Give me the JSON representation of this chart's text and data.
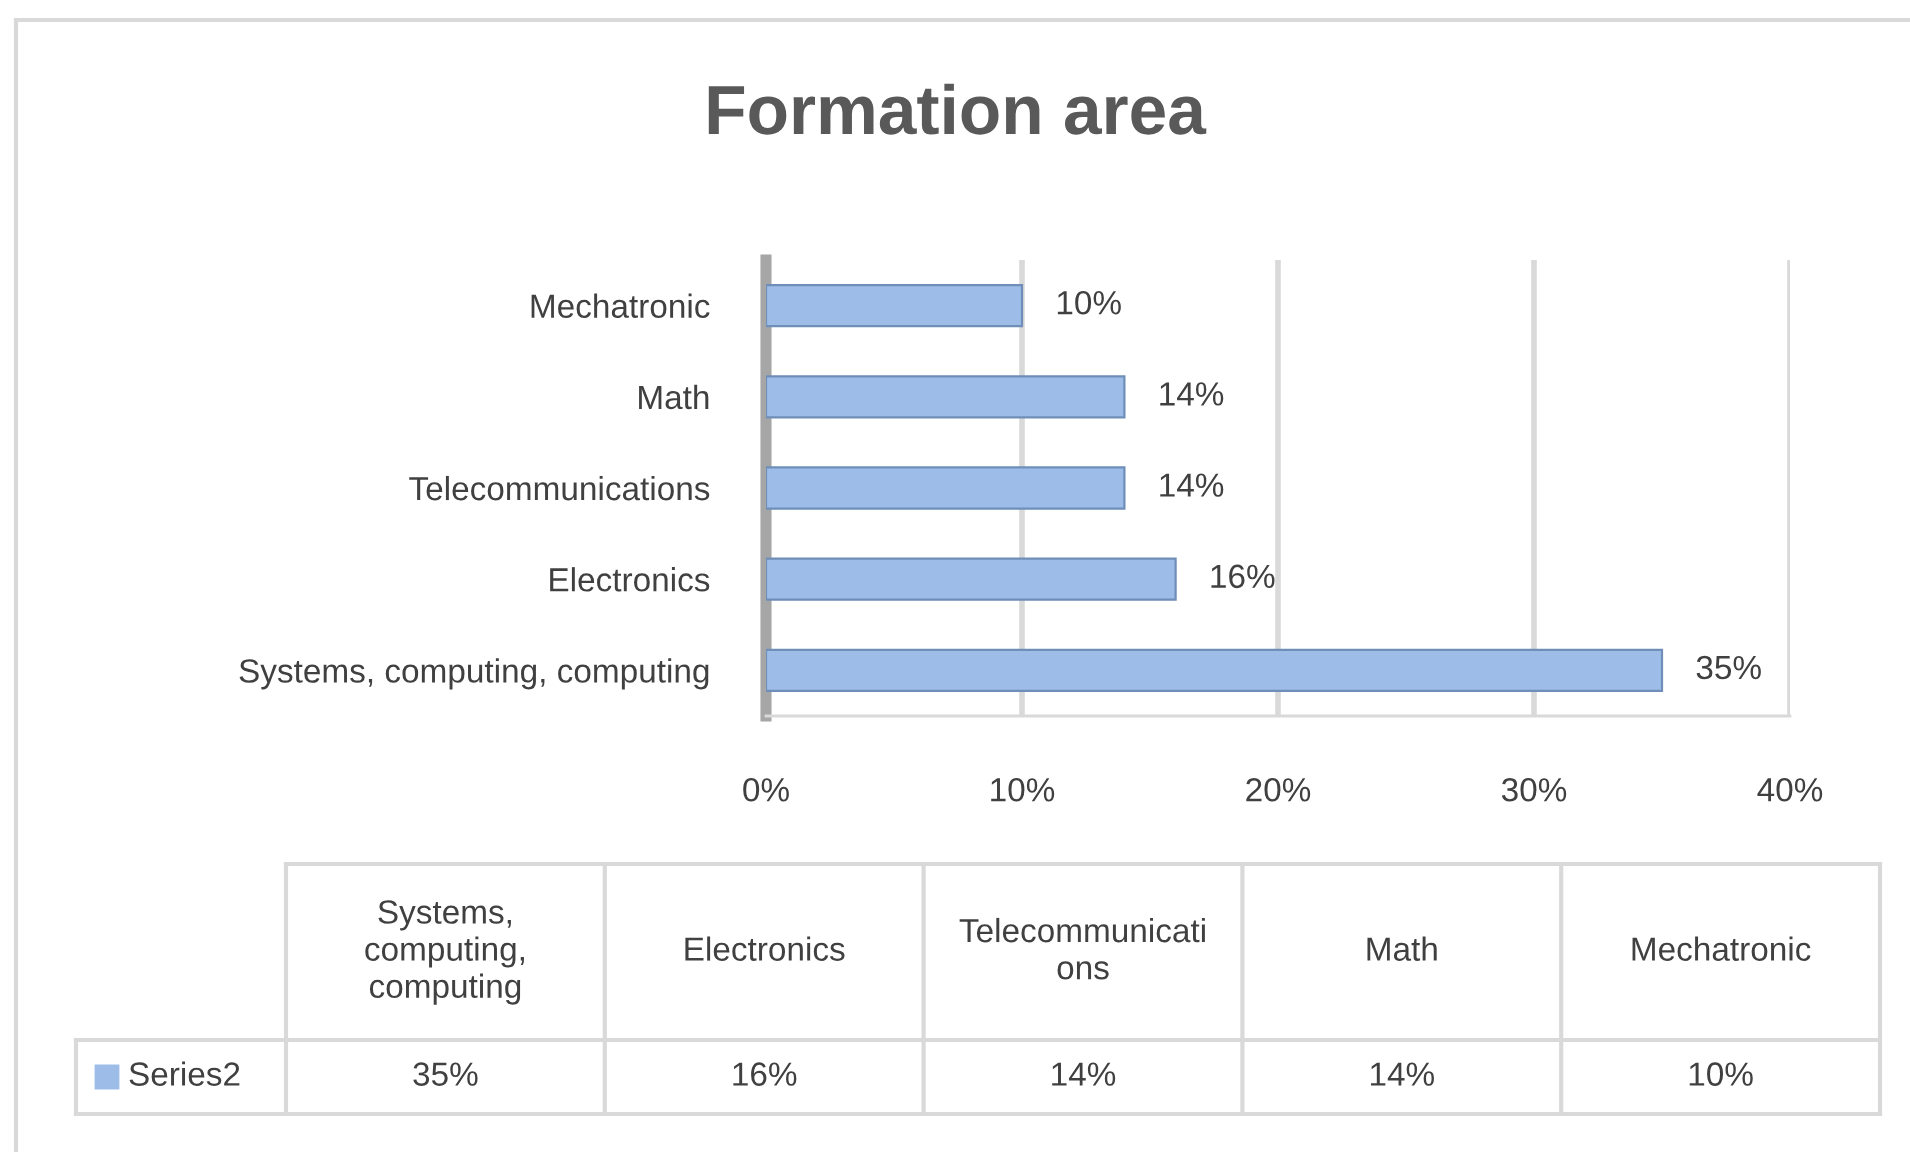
{
  "chart_data": {
    "type": "bar",
    "orientation": "horizontal",
    "title": "Formation area",
    "categories": [
      "Mechatronic",
      "Math",
      "Telecommunications",
      "Electronics",
      "Systems, computing, computing"
    ],
    "series": [
      {
        "name": "Series2",
        "color": "#9dbde8",
        "values": [
          10,
          14,
          14,
          16,
          35
        ],
        "value_labels": [
          "10%",
          "14%",
          "14%",
          "16%",
          "35%"
        ]
      }
    ],
    "xlim": [
      0,
      40
    ],
    "xticks": [
      {
        "value": 0,
        "label": "0%"
      },
      {
        "value": 10,
        "label": "10%"
      },
      {
        "value": 20,
        "label": "20%"
      },
      {
        "value": 30,
        "label": "30%"
      },
      {
        "value": 40,
        "label": "40%"
      }
    ],
    "grid": "x",
    "legend": "bottom"
  }
}
